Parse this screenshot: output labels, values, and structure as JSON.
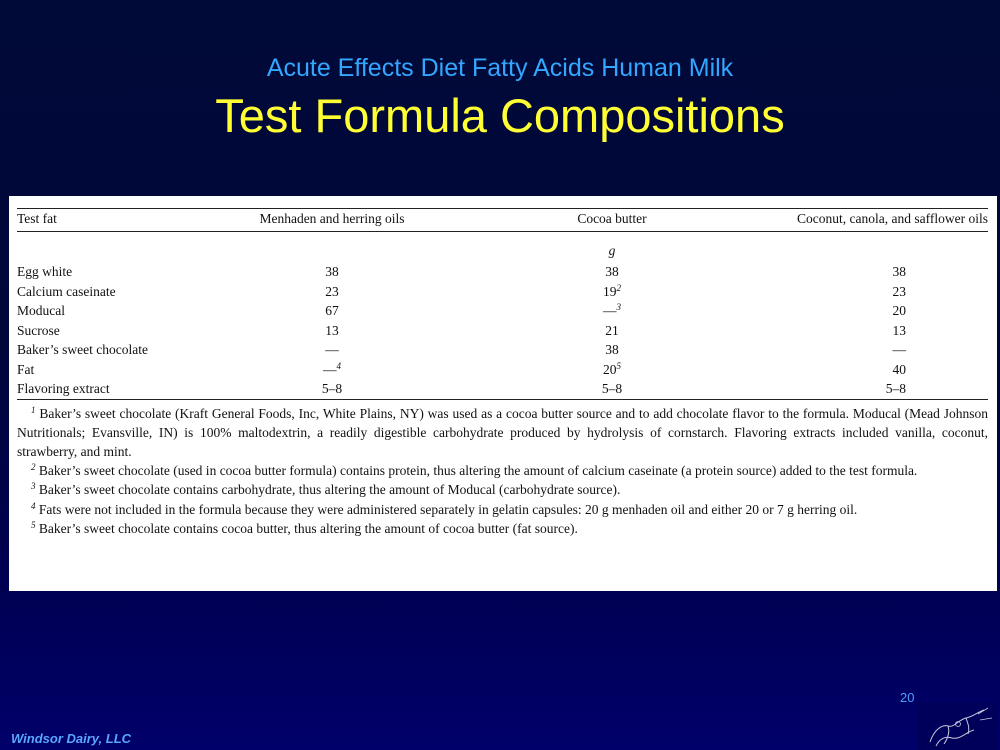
{
  "slide": {
    "subtitle": "Acute Effects Diet Fatty Acids Human Milk",
    "title": "Test Formula Compositions",
    "page_number": "20",
    "company": "Windsor Dairy, LLC",
    "logo_icon": "windsor-dairy-logo-icon",
    "colors": {
      "subtitle": "#33a6ff",
      "title": "#ffff33",
      "background": "#000a38"
    }
  },
  "table": {
    "headers": [
      "Test fat",
      "Menhaden and herring oils",
      "Cocoa butter",
      "Coconut, canola, and safflower oils"
    ],
    "unit": "g",
    "rows": [
      {
        "label": "Egg white",
        "c1": "38",
        "c1_sup": "",
        "c2": "38",
        "c2_sup": "",
        "c3": "38"
      },
      {
        "label": "Calcium caseinate",
        "c1": "23",
        "c1_sup": "",
        "c2": "19",
        "c2_sup": "2",
        "c3": "23"
      },
      {
        "label": "Moducal",
        "c1": "67",
        "c1_sup": "",
        "c2": "—",
        "c2_sup": "3",
        "c3": "20"
      },
      {
        "label": "Sucrose",
        "c1": "13",
        "c1_sup": "",
        "c2": "21",
        "c2_sup": "",
        "c3": "13"
      },
      {
        "label": "Baker’s sweet chocolate",
        "c1": "—",
        "c1_sup": "",
        "c2": "38",
        "c2_sup": "",
        "c3": "—"
      },
      {
        "label": "Fat",
        "c1": "—",
        "c1_sup": "4",
        "c2": "20",
        "c2_sup": "5",
        "c3": "40"
      },
      {
        "label": "Flavoring extract",
        "c1": "5–8",
        "c1_sup": "",
        "c2": "5–8",
        "c2_sup": "",
        "c3": "5–8"
      }
    ]
  },
  "footnotes": [
    {
      "mark": "1",
      "text": "Baker’s sweet chocolate (Kraft General Foods, Inc, White Plains, NY) was used as a cocoa butter source and to add chocolate flavor to the formula. Moducal (Mead Johnson Nutritionals; Evansville, IN) is 100% maltodextrin, a readily digestible carbohydrate produced by hydrolysis of cornstarch. Flavoring extracts included vanilla, coconut, strawberry, and mint."
    },
    {
      "mark": "2",
      "text": "Baker’s sweet chocolate (used in cocoa butter formula) contains protein, thus altering the amount of calcium caseinate (a protein source) added to the test formula."
    },
    {
      "mark": "3",
      "text": "Baker’s sweet chocolate contains carbohydrate, thus altering the amount of Moducal (carbohydrate source)."
    },
    {
      "mark": "4",
      "text": "Fats were not included in the formula because they were administered separately in gelatin capsules: 20 g menhaden oil and either 20 or 7 g herring oil."
    },
    {
      "mark": "5",
      "text": "Baker’s sweet chocolate contains cocoa butter, thus altering the amount of cocoa butter (fat source)."
    }
  ]
}
